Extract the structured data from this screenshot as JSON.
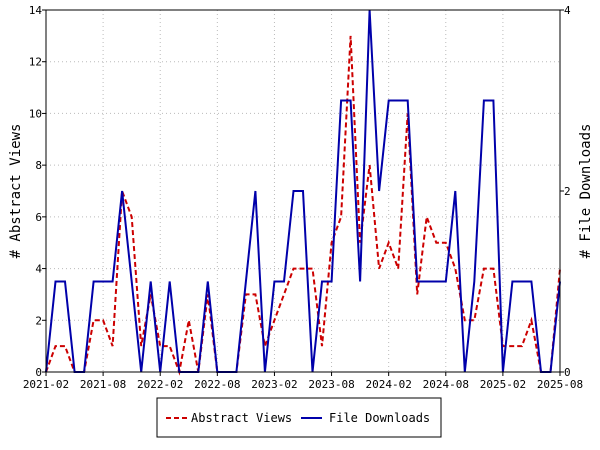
{
  "chart_data": {
    "type": "line",
    "title": "",
    "xlabel": "",
    "ylabel": "# Abstract Views",
    "y2label": "# File Downloads",
    "ylim": [
      0,
      14
    ],
    "y2lim": [
      0,
      4
    ],
    "yticks": [
      0,
      2,
      4,
      6,
      8,
      10,
      12,
      14
    ],
    "y2ticks": [
      0,
      2,
      4
    ],
    "xtick_labels": [
      "2021-02",
      "2021-08",
      "2022-02",
      "2022-08",
      "2023-02",
      "2023-08",
      "2024-02",
      "2024-08",
      "2025-02",
      "2025-08"
    ],
    "grid": true,
    "legend_position": "bottom",
    "colors": {
      "abstract_views": "#cc0000",
      "file_downloads": "#0000aa",
      "grid": "#bbbbbb"
    },
    "series": [
      {
        "name": "Abstract Views",
        "axis": "left",
        "style": "dashed",
        "x": [
          0,
          1,
          2,
          3,
          4,
          5,
          6,
          7,
          8,
          9,
          10,
          11,
          12,
          13,
          14,
          15,
          16,
          17,
          18,
          19,
          20,
          21,
          22,
          23,
          24,
          25,
          26,
          27,
          28,
          29,
          30,
          31,
          32,
          33,
          34,
          35,
          36,
          37,
          38,
          39,
          40,
          41,
          42,
          43,
          44,
          45,
          46,
          47,
          48,
          49,
          50,
          51,
          52,
          53,
          54
        ],
        "values": [
          0,
          1,
          1,
          0,
          0,
          2,
          2,
          1,
          7,
          6,
          1,
          3,
          1,
          1,
          0,
          2,
          0,
          3,
          0,
          0,
          0,
          3,
          3,
          1,
          2,
          3,
          4,
          4,
          4,
          1,
          5,
          6,
          13,
          5,
          8,
          4,
          5,
          4,
          10,
          3,
          6,
          5,
          5,
          4,
          2,
          2,
          4,
          4,
          1,
          1,
          1,
          2,
          0,
          0,
          4
        ]
      },
      {
        "name": "File Downloads",
        "axis": "right",
        "style": "solid",
        "x": [
          0,
          1,
          2,
          3,
          4,
          5,
          6,
          7,
          8,
          9,
          10,
          11,
          12,
          13,
          14,
          15,
          16,
          17,
          18,
          19,
          20,
          21,
          22,
          23,
          24,
          25,
          26,
          27,
          28,
          29,
          30,
          30.5,
          31,
          32,
          33,
          34,
          35,
          36,
          37,
          38,
          39,
          40,
          41,
          42,
          43,
          44,
          45,
          46,
          47,
          48,
          49,
          50,
          51,
          52,
          53,
          54
        ],
        "values": [
          0,
          1,
          1,
          0,
          0,
          1,
          1,
          1,
          2,
          1,
          0,
          1,
          0,
          1,
          0,
          0,
          0,
          1,
          0,
          0,
          0,
          1,
          2,
          0,
          1,
          1,
          2,
          2,
          0,
          1,
          1,
          2,
          3,
          3,
          1,
          4,
          2,
          3,
          3,
          3,
          1,
          1,
          1,
          1,
          2,
          0,
          1,
          3,
          3,
          0,
          1,
          1,
          1,
          0,
          0,
          1
        ]
      }
    ]
  }
}
